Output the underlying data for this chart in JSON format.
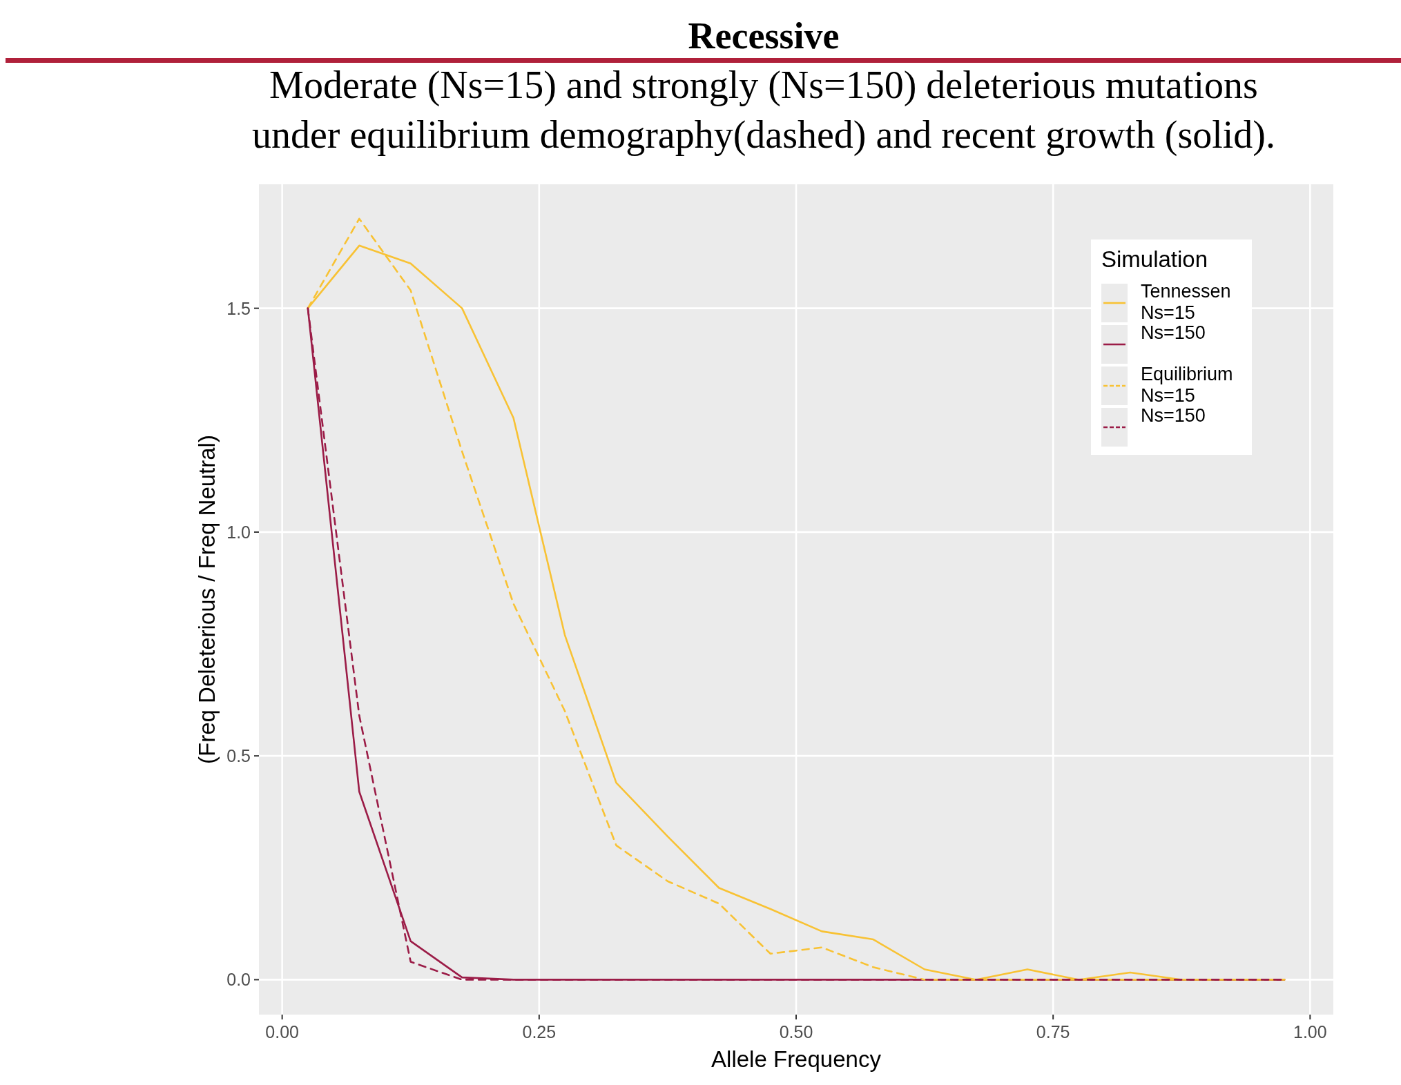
{
  "chart_data": {
    "type": "line",
    "title": "Recessive",
    "subtitle": "Moderate (Ns=15) and strongly (Ns=150) deleterious mutations\nunder equilibrium demography(dashed) and recent growth (solid).",
    "xlabel": "Allele Frequency",
    "ylabel": "(Freq Deleterious / Freq Neutral)",
    "legend_title": "Simulation",
    "legend": "top right",
    "grid": true,
    "x": [
      0.025,
      0.075,
      0.125,
      0.175,
      0.225,
      0.275,
      0.325,
      0.375,
      0.425,
      0.475,
      0.525,
      0.575,
      0.625,
      0.675,
      0.725,
      0.775,
      0.825,
      0.875,
      0.925,
      0.975
    ],
    "xlim": [
      -0.0226,
      1.0226
    ],
    "xticks": [
      {
        "value": 0,
        "label": "0.00"
      },
      {
        "value": 0.25,
        "label": "0.25"
      },
      {
        "value": 0.5,
        "label": "0.50"
      },
      {
        "value": 0.75,
        "label": "0.75"
      },
      {
        "value": 1,
        "label": "1.00"
      }
    ],
    "ylim": [
      -0.078,
      1.777
    ],
    "yticks": [
      {
        "value": 0,
        "label": "0.0"
      },
      {
        "value": 0.5,
        "label": "0.5"
      },
      {
        "value": 1,
        "label": "1.0"
      },
      {
        "value": 1.5,
        "label": "1.5"
      }
    ],
    "series": [
      {
        "name": "Tennessen\nNs=15",
        "color": "#f8c234",
        "line_style": "solid",
        "values": [
          1.5,
          1.64,
          1.6,
          1.5,
          1.255,
          0.77,
          0.44,
          0.32,
          0.205,
          0.158,
          0.108,
          0.09,
          0.023,
          0,
          0.023,
          0,
          0.016,
          0,
          0,
          0
        ]
      },
      {
        "name": "Ns=150",
        "color": "#9b1c47",
        "line_style": "solid",
        "values": [
          1.5,
          0.42,
          0.086,
          0.005,
          0,
          0,
          0,
          0,
          0,
          0,
          0,
          0,
          0,
          0,
          0,
          0,
          0,
          0,
          0,
          0
        ]
      },
      {
        "name": "Equilibrium\nNs=15",
        "color": "#f8c234",
        "line_style": "dashed",
        "values": [
          1.5,
          1.7,
          1.54,
          1.18,
          0.84,
          0.6,
          0.3,
          0.22,
          0.17,
          0.058,
          0.072,
          0.028,
          0,
          0,
          0,
          0,
          0,
          0,
          0,
          0
        ]
      },
      {
        "name": "Ns=150",
        "color": "#9b1c47",
        "line_style": "dashed",
        "values": [
          1.5,
          0.59,
          0.04,
          0,
          0,
          0,
          0,
          0,
          0,
          0,
          0,
          0,
          0,
          0,
          0,
          0,
          0,
          0,
          0,
          0
        ]
      }
    ]
  }
}
